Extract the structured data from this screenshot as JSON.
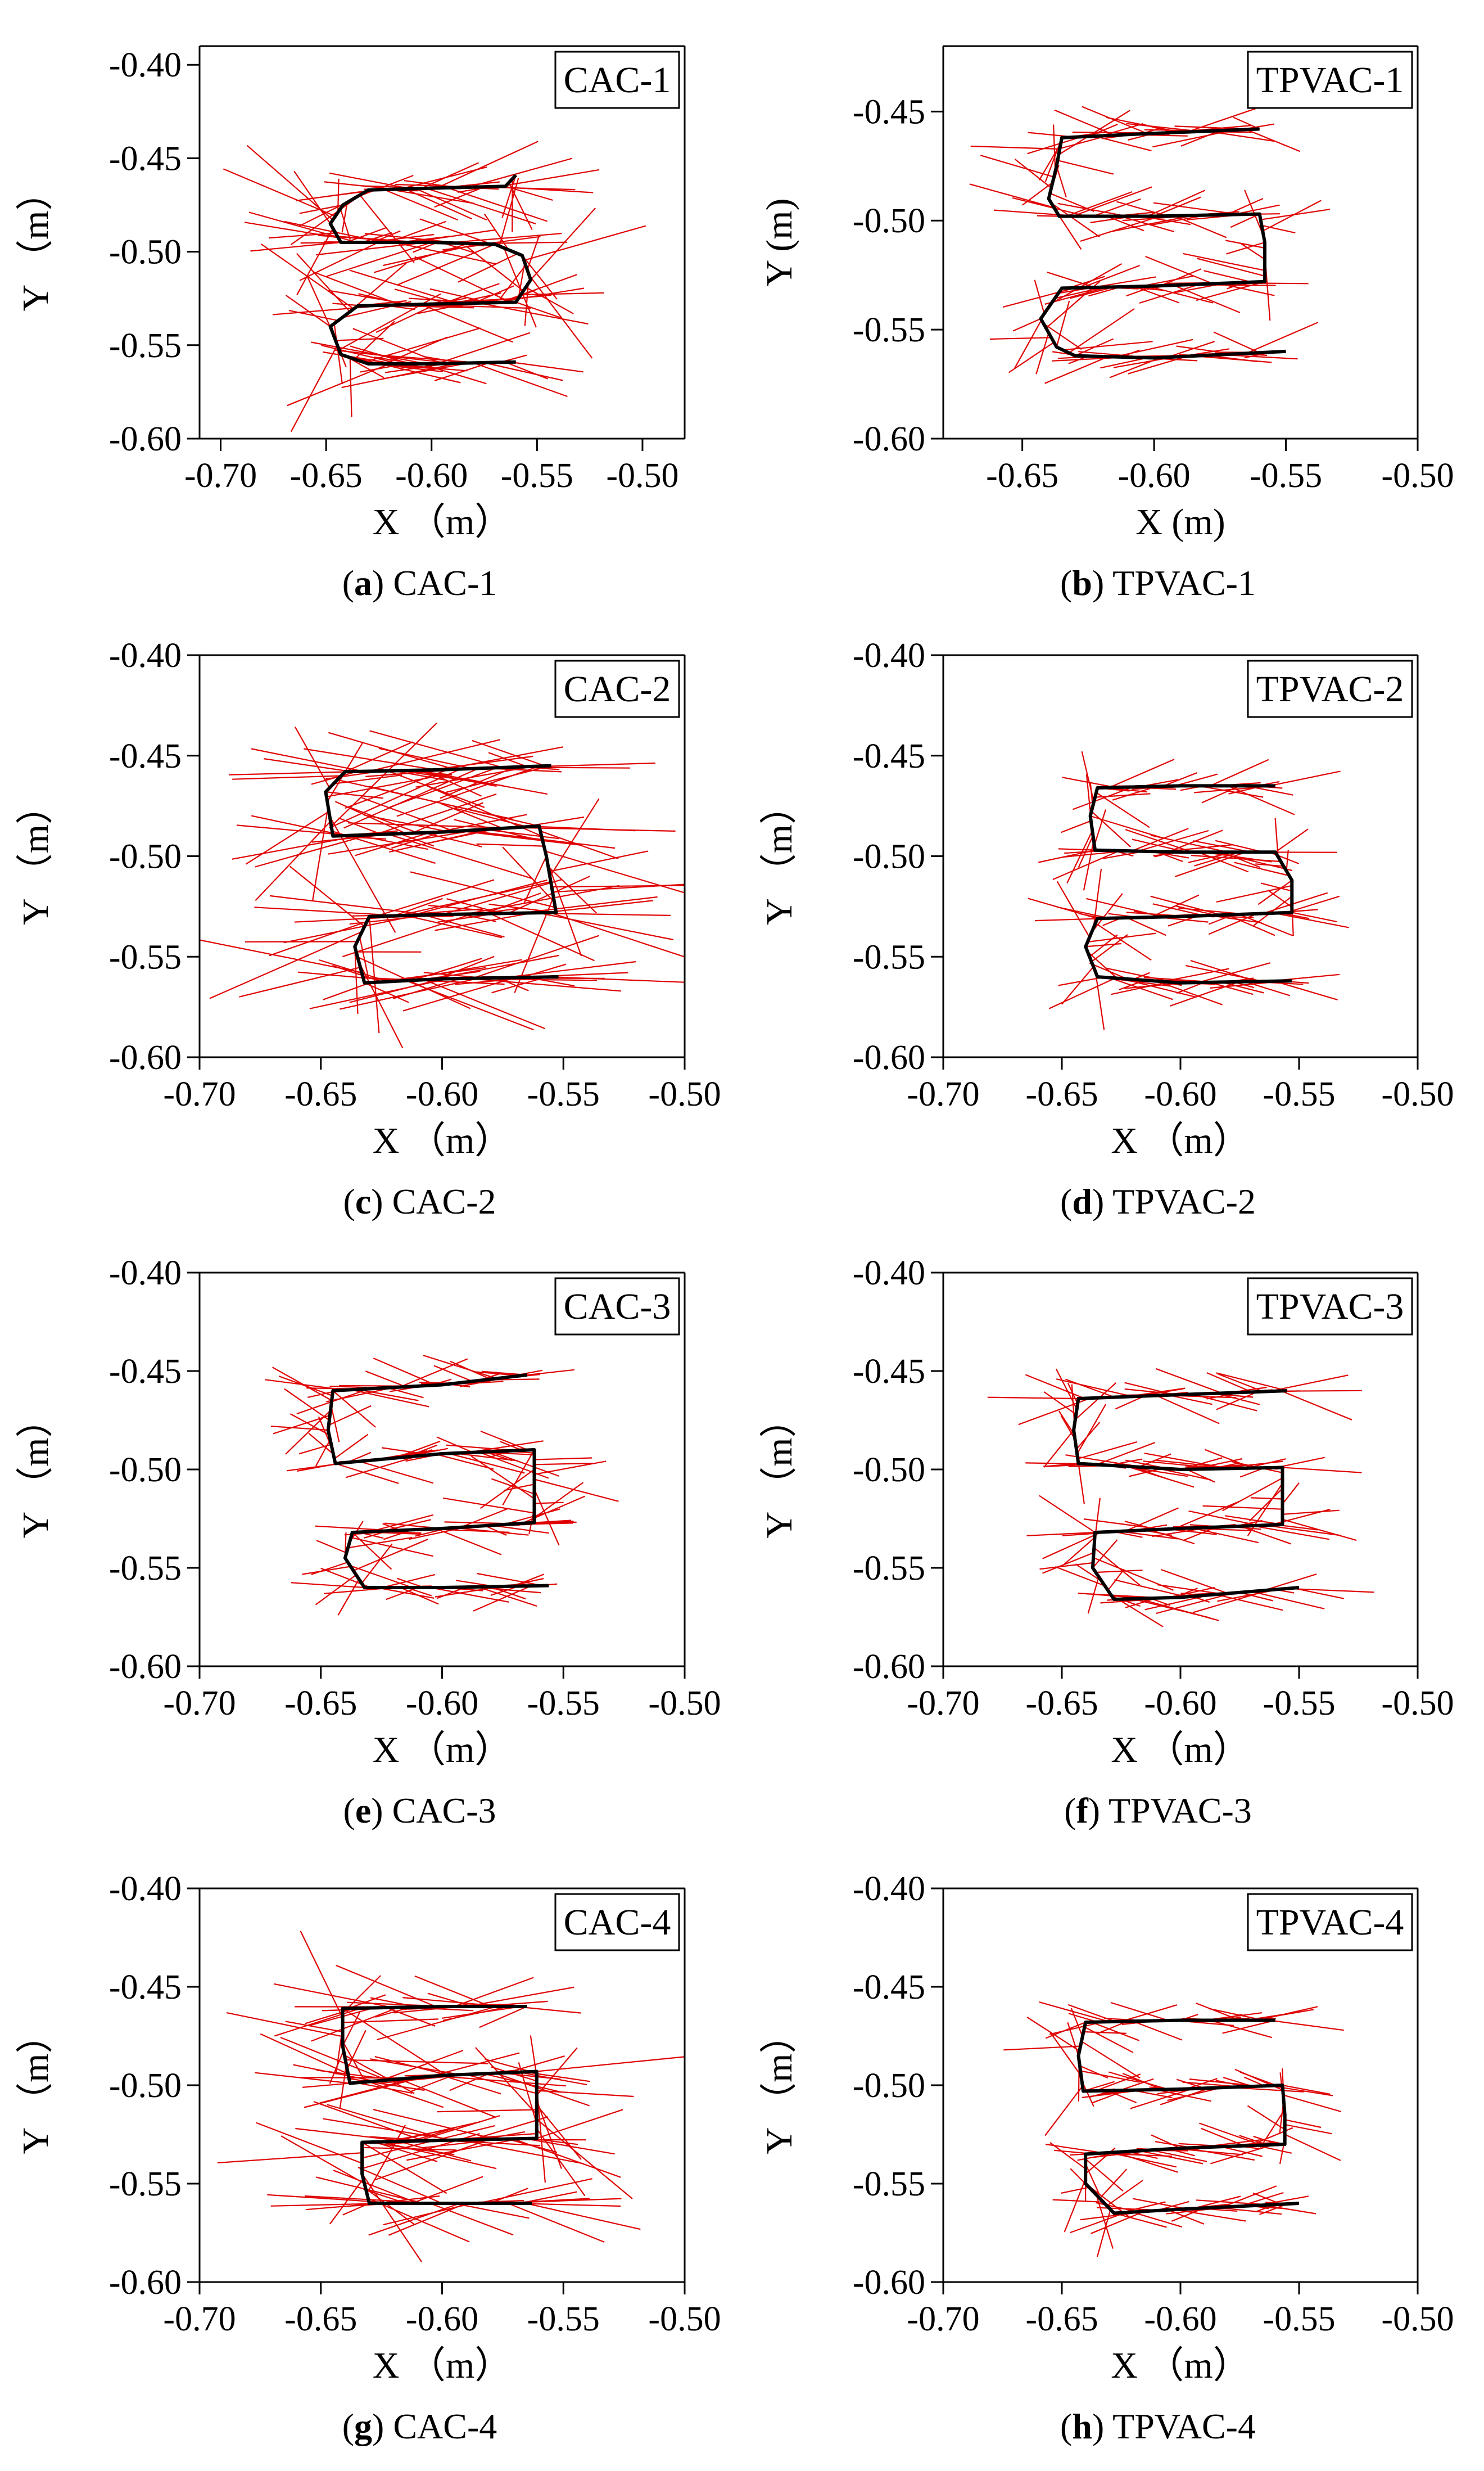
{
  "chart_data": [
    {
      "type": "line",
      "panel": "a",
      "title": "CAC-1",
      "caption_letter": "a",
      "caption_text": "CAC-1",
      "xlabel": "X （m）",
      "ylabel": "Y （m）",
      "xlim": [
        -0.71,
        -0.48
      ],
      "ylim": [
        -0.6,
        -0.39
      ],
      "xticks": [
        -0.7,
        -0.65,
        -0.6,
        -0.55,
        -0.5
      ],
      "yticks": [
        -0.4,
        -0.45,
        -0.5,
        -0.55,
        -0.6
      ],
      "xtick_labels": [
        "-0.70",
        "-0.65",
        "-0.60",
        "-0.55",
        "-0.50"
      ],
      "ytick_labels": [
        "-0.40",
        "-0.45",
        "-0.50",
        "-0.55",
        "-0.60"
      ],
      "trajectory": [
        [
          -0.56,
          -0.459
        ],
        [
          -0.565,
          -0.465
        ],
        [
          -0.6,
          -0.466
        ],
        [
          -0.63,
          -0.467
        ],
        [
          -0.642,
          -0.475
        ],
        [
          -0.648,
          -0.485
        ],
        [
          -0.643,
          -0.495
        ],
        [
          -0.6,
          -0.495
        ],
        [
          -0.57,
          -0.496
        ],
        [
          -0.557,
          -0.502
        ],
        [
          -0.553,
          -0.515
        ],
        [
          -0.56,
          -0.527
        ],
        [
          -0.6,
          -0.528
        ],
        [
          -0.635,
          -0.529
        ],
        [
          -0.648,
          -0.54
        ],
        [
          -0.643,
          -0.555
        ],
        [
          -0.63,
          -0.56
        ],
        [
          -0.6,
          -0.56
        ],
        [
          -0.56,
          -0.559
        ]
      ],
      "vectors": {
        "spread": 0.05,
        "color": "#e00000"
      }
    },
    {
      "type": "line",
      "panel": "b",
      "title": "TPVAC-1",
      "caption_letter": "b",
      "caption_text": "TPVAC-1",
      "xlabel": "X (m)",
      "ylabel": "Y (m)",
      "xlim": [
        -0.68,
        -0.5
      ],
      "ylim": [
        -0.6,
        -0.42
      ],
      "xticks": [
        -0.65,
        -0.6,
        -0.55,
        -0.5
      ],
      "yticks": [
        -0.45,
        -0.5,
        -0.55,
        -0.6
      ],
      "xtick_labels": [
        "-0.65",
        "-0.60",
        "-0.55",
        "-0.50"
      ],
      "ytick_labels": [
        "-0.45",
        "-0.50",
        "-0.55",
        "-0.60"
      ],
      "trajectory": [
        [
          -0.56,
          -0.458
        ],
        [
          -0.6,
          -0.46
        ],
        [
          -0.635,
          -0.462
        ],
        [
          -0.637,
          -0.475
        ],
        [
          -0.64,
          -0.49
        ],
        [
          -0.636,
          -0.498
        ],
        [
          -0.6,
          -0.498
        ],
        [
          -0.56,
          -0.497
        ],
        [
          -0.558,
          -0.51
        ],
        [
          -0.558,
          -0.528
        ],
        [
          -0.6,
          -0.53
        ],
        [
          -0.635,
          -0.531
        ],
        [
          -0.643,
          -0.545
        ],
        [
          -0.637,
          -0.558
        ],
        [
          -0.63,
          -0.562
        ],
        [
          -0.6,
          -0.563
        ],
        [
          -0.55,
          -0.56
        ]
      ],
      "vectors": {
        "spread": 0.03,
        "color": "#e00000"
      }
    },
    {
      "type": "line",
      "panel": "c",
      "title": "CAC-2",
      "caption_letter": "c",
      "caption_text": "CAC-2",
      "xlabel": "X （m）",
      "ylabel": "Y （m）",
      "xlim": [
        -0.7,
        -0.5
      ],
      "ylim": [
        -0.6,
        -0.4
      ],
      "xticks": [
        -0.7,
        -0.65,
        -0.6,
        -0.55,
        -0.5
      ],
      "yticks": [
        -0.4,
        -0.45,
        -0.5,
        -0.55,
        -0.6
      ],
      "xtick_labels": [
        "-0.70",
        "-0.65",
        "-0.60",
        "-0.55",
        "-0.50"
      ],
      "ytick_labels": [
        "-0.40",
        "-0.45",
        "-0.50",
        "-0.55",
        "-0.60"
      ],
      "trajectory": [
        [
          -0.555,
          -0.455
        ],
        [
          -0.6,
          -0.457
        ],
        [
          -0.64,
          -0.458
        ],
        [
          -0.648,
          -0.468
        ],
        [
          -0.645,
          -0.49
        ],
        [
          -0.6,
          -0.488
        ],
        [
          -0.56,
          -0.485
        ],
        [
          -0.557,
          -0.5
        ],
        [
          -0.553,
          -0.528
        ],
        [
          -0.6,
          -0.529
        ],
        [
          -0.63,
          -0.53
        ],
        [
          -0.636,
          -0.545
        ],
        [
          -0.632,
          -0.563
        ],
        [
          -0.6,
          -0.561
        ],
        [
          -0.552,
          -0.56
        ]
      ],
      "vectors": {
        "spread": 0.06,
        "color": "#e00000"
      }
    },
    {
      "type": "line",
      "panel": "d",
      "title": "TPVAC-2",
      "caption_letter": "d",
      "caption_text": "TPVAC-2",
      "xlabel": "X （m）",
      "ylabel": "Y （m）",
      "xlim": [
        -0.7,
        -0.5
      ],
      "ylim": [
        -0.6,
        -0.4
      ],
      "xticks": [
        -0.7,
        -0.65,
        -0.6,
        -0.55,
        -0.5
      ],
      "yticks": [
        -0.4,
        -0.45,
        -0.5,
        -0.55,
        -0.6
      ],
      "xtick_labels": [
        "-0.70",
        "-0.65",
        "-0.60",
        "-0.55",
        "-0.50"
      ],
      "ytick_labels": [
        "-0.40",
        "-0.45",
        "-0.50",
        "-0.55",
        "-0.60"
      ],
      "trajectory": [
        [
          -0.56,
          -0.465
        ],
        [
          -0.6,
          -0.465
        ],
        [
          -0.635,
          -0.466
        ],
        [
          -0.638,
          -0.48
        ],
        [
          -0.636,
          -0.497
        ],
        [
          -0.6,
          -0.498
        ],
        [
          -0.56,
          -0.498
        ],
        [
          -0.553,
          -0.512
        ],
        [
          -0.553,
          -0.528
        ],
        [
          -0.6,
          -0.53
        ],
        [
          -0.635,
          -0.531
        ],
        [
          -0.64,
          -0.545
        ],
        [
          -0.635,
          -0.56
        ],
        [
          -0.6,
          -0.563
        ],
        [
          -0.553,
          -0.562
        ]
      ],
      "vectors": {
        "spread": 0.03,
        "color": "#e00000"
      }
    },
    {
      "type": "line",
      "panel": "e",
      "title": "CAC-3",
      "caption_letter": "e",
      "caption_text": "CAC-3",
      "xlabel": "X （m）",
      "ylabel": "Y （m）",
      "xlim": [
        -0.7,
        -0.5
      ],
      "ylim": [
        -0.6,
        -0.4
      ],
      "xticks": [
        -0.7,
        -0.65,
        -0.6,
        -0.55,
        -0.5
      ],
      "yticks": [
        -0.4,
        -0.45,
        -0.5,
        -0.55,
        -0.6
      ],
      "xtick_labels": [
        "-0.70",
        "-0.65",
        "-0.60",
        "-0.55",
        "-0.50"
      ],
      "ytick_labels": [
        "-0.40",
        "-0.45",
        "-0.50",
        "-0.55",
        "-0.60"
      ],
      "trajectory": [
        [
          -0.565,
          -0.452
        ],
        [
          -0.6,
          -0.457
        ],
        [
          -0.645,
          -0.46
        ],
        [
          -0.647,
          -0.48
        ],
        [
          -0.644,
          -0.497
        ],
        [
          -0.6,
          -0.492
        ],
        [
          -0.562,
          -0.49
        ],
        [
          -0.562,
          -0.51
        ],
        [
          -0.562,
          -0.527
        ],
        [
          -0.6,
          -0.53
        ],
        [
          -0.637,
          -0.532
        ],
        [
          -0.64,
          -0.545
        ],
        [
          -0.632,
          -0.56
        ],
        [
          -0.6,
          -0.56
        ],
        [
          -0.556,
          -0.559
        ]
      ],
      "vectors": {
        "spread": 0.03,
        "color": "#e00000"
      }
    },
    {
      "type": "line",
      "panel": "f",
      "title": "TPVAC-3",
      "caption_letter": "f",
      "caption_text": "TPVAC-3",
      "xlabel": "X （m）",
      "ylabel": "Y （m）",
      "xlim": [
        -0.7,
        -0.5
      ],
      "ylim": [
        -0.6,
        -0.4
      ],
      "xticks": [
        -0.7,
        -0.65,
        -0.6,
        -0.55,
        -0.5
      ],
      "yticks": [
        -0.4,
        -0.45,
        -0.5,
        -0.55,
        -0.6
      ],
      "xtick_labels": [
        "-0.70",
        "-0.65",
        "-0.60",
        "-0.55",
        "-0.50"
      ],
      "ytick_labels": [
        "-0.40",
        "-0.45",
        "-0.50",
        "-0.55",
        "-0.60"
      ],
      "trajectory": [
        [
          -0.555,
          -0.46
        ],
        [
          -0.6,
          -0.462
        ],
        [
          -0.643,
          -0.464
        ],
        [
          -0.645,
          -0.48
        ],
        [
          -0.643,
          -0.497
        ],
        [
          -0.6,
          -0.5
        ],
        [
          -0.557,
          -0.499
        ],
        [
          -0.557,
          -0.515
        ],
        [
          -0.557,
          -0.528
        ],
        [
          -0.6,
          -0.53
        ],
        [
          -0.636,
          -0.532
        ],
        [
          -0.637,
          -0.55
        ],
        [
          -0.628,
          -0.566
        ],
        [
          -0.6,
          -0.565
        ],
        [
          -0.55,
          -0.56
        ]
      ],
      "vectors": {
        "spread": 0.032,
        "color": "#e00000"
      }
    },
    {
      "type": "line",
      "panel": "g",
      "title": "CAC-4",
      "caption_letter": "g",
      "caption_text": "CAC-4",
      "xlabel": "X （m）",
      "ylabel": "Y （m）",
      "xlim": [
        -0.7,
        -0.5
      ],
      "ylim": [
        -0.6,
        -0.4
      ],
      "xticks": [
        -0.7,
        -0.65,
        -0.6,
        -0.55,
        -0.5
      ],
      "yticks": [
        -0.4,
        -0.45,
        -0.5,
        -0.55,
        -0.6
      ],
      "xtick_labels": [
        "-0.70",
        "-0.65",
        "-0.60",
        "-0.55",
        "-0.50"
      ],
      "ytick_labels": [
        "-0.40",
        "-0.45",
        "-0.50",
        "-0.55",
        "-0.60"
      ],
      "trajectory": [
        [
          -0.565,
          -0.46
        ],
        [
          -0.6,
          -0.46
        ],
        [
          -0.641,
          -0.461
        ],
        [
          -0.641,
          -0.48
        ],
        [
          -0.638,
          -0.499
        ],
        [
          -0.6,
          -0.495
        ],
        [
          -0.561,
          -0.493
        ],
        [
          -0.561,
          -0.51
        ],
        [
          -0.561,
          -0.527
        ],
        [
          -0.6,
          -0.528
        ],
        [
          -0.633,
          -0.529
        ],
        [
          -0.633,
          -0.545
        ],
        [
          -0.63,
          -0.56
        ],
        [
          -0.6,
          -0.56
        ],
        [
          -0.563,
          -0.56
        ]
      ],
      "vectors": {
        "spread": 0.05,
        "color": "#e00000"
      }
    },
    {
      "type": "line",
      "panel": "h",
      "title": "TPVAC-4",
      "caption_letter": "h",
      "caption_text": "TPVAC-4",
      "xlabel": "X （m）",
      "ylabel": "Y （m）",
      "xlim": [
        -0.7,
        -0.5
      ],
      "ylim": [
        -0.6,
        -0.4
      ],
      "xticks": [
        -0.7,
        -0.65,
        -0.6,
        -0.55,
        -0.5
      ],
      "yticks": [
        -0.4,
        -0.45,
        -0.5,
        -0.55,
        -0.6
      ],
      "xtick_labels": [
        "-0.70",
        "-0.65",
        "-0.60",
        "-0.55",
        "-0.50"
      ],
      "ytick_labels": [
        "-0.40",
        "-0.45",
        "-0.50",
        "-0.55",
        "-0.60"
      ],
      "trajectory": [
        [
          -0.56,
          -0.467
        ],
        [
          -0.6,
          -0.467
        ],
        [
          -0.64,
          -0.468
        ],
        [
          -0.643,
          -0.485
        ],
        [
          -0.641,
          -0.503
        ],
        [
          -0.6,
          -0.502
        ],
        [
          -0.557,
          -0.5
        ],
        [
          -0.556,
          -0.515
        ],
        [
          -0.556,
          -0.53
        ],
        [
          -0.6,
          -0.532
        ],
        [
          -0.64,
          -0.535
        ],
        [
          -0.64,
          -0.55
        ],
        [
          -0.628,
          -0.565
        ],
        [
          -0.6,
          -0.563
        ],
        [
          -0.55,
          -0.56
        ]
      ],
      "vectors": {
        "spread": 0.028,
        "color": "#e00000"
      }
    }
  ]
}
